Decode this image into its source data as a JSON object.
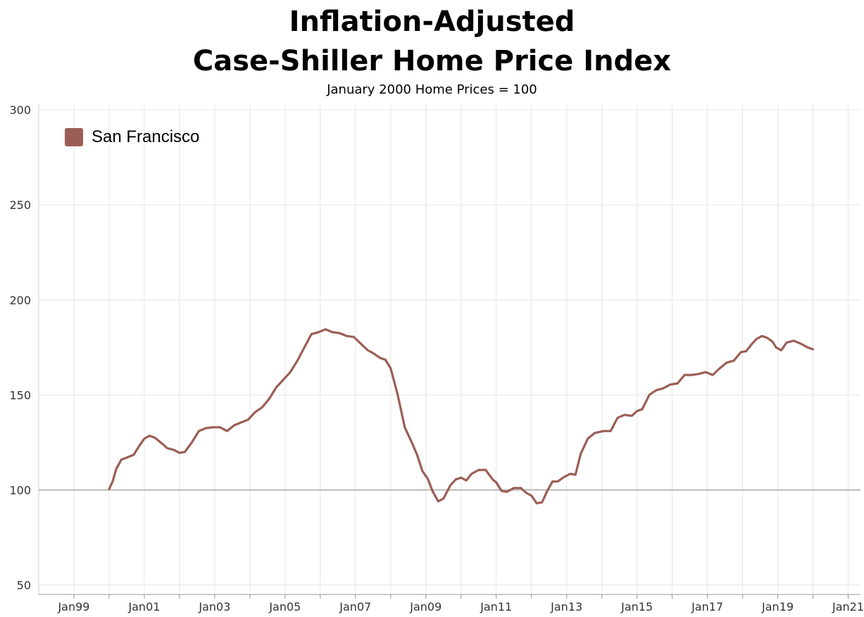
{
  "chart_data": {
    "type": "line",
    "title_line1": "Inflation-Adjusted",
    "title_line2": "Case-Shiller Home Price Index",
    "subtitle": "January 2000 Home Prices = 100",
    "xlabel": "",
    "ylabel": "",
    "ylim": [
      45,
      303
    ],
    "xlim": [
      1998.0,
      2021.35
    ],
    "yticks": [
      50,
      100,
      150,
      200,
      250,
      300
    ],
    "xticks": [
      {
        "label": "Jan99",
        "year": 1999
      },
      {
        "label": "Jan01",
        "year": 2001
      },
      {
        "label": "Jan03",
        "year": 2003
      },
      {
        "label": "Jan05",
        "year": 2005
      },
      {
        "label": "Jan07",
        "year": 2007
      },
      {
        "label": "Jan09",
        "year": 2009
      },
      {
        "label": "Jan11",
        "year": 2011
      },
      {
        "label": "Jan13",
        "year": 2013
      },
      {
        "label": "Jan15",
        "year": 2015
      },
      {
        "label": "Jan17",
        "year": 2017
      },
      {
        "label": "Jan19",
        "year": 2019
      },
      {
        "label": "Jan21",
        "year": 2021
      }
    ],
    "reference_line": 100,
    "grid": true,
    "legend_position": "top-left",
    "series": [
      {
        "name": "San Francisco",
        "color": "#9b5e56",
        "x": [
          2000.0,
          2000.1,
          2000.2,
          2000.35,
          2000.5,
          2000.7,
          2000.85,
          2001.0,
          2001.15,
          2001.3,
          2001.5,
          2001.65,
          2001.85,
          2002.0,
          2002.15,
          2002.35,
          2002.55,
          2002.75,
          2002.95,
          2003.15,
          2003.35,
          2003.55,
          2003.75,
          2003.95,
          2004.15,
          2004.35,
          2004.55,
          2004.75,
          2004.95,
          2005.15,
          2005.35,
          2005.55,
          2005.75,
          2005.95,
          2006.15,
          2006.35,
          2006.55,
          2006.75,
          2006.95,
          2007.15,
          2007.35,
          2007.5,
          2007.7,
          2007.85,
          2008.0,
          2008.2,
          2008.4,
          2008.6,
          2008.75,
          2008.9,
          2009.05,
          2009.2,
          2009.35,
          2009.5,
          2009.7,
          2009.85,
          2010.0,
          2010.15,
          2010.3,
          2010.5,
          2010.7,
          2010.9,
          2011.0,
          2011.15,
          2011.3,
          2011.5,
          2011.7,
          2011.85,
          2012.0,
          2012.15,
          2012.3,
          2012.45,
          2012.6,
          2012.75,
          2012.9,
          2013.1,
          2013.25,
          2013.4,
          2013.6,
          2013.8,
          2014.05,
          2014.25,
          2014.45,
          2014.65,
          2014.85,
          2015.0,
          2015.15,
          2015.35,
          2015.55,
          2015.75,
          2015.95,
          2016.15,
          2016.35,
          2016.55,
          2016.75,
          2016.95,
          2017.15,
          2017.35,
          2017.55,
          2017.75,
          2017.95,
          2018.1,
          2018.25,
          2018.4,
          2018.55,
          2018.7,
          2018.85,
          2018.95,
          2019.1,
          2019.25,
          2019.45,
          2019.65,
          2019.85,
          2020.0
        ],
        "values": [
          100.5,
          104.5,
          111.0,
          116.0,
          117.0,
          118.5,
          123.0,
          127.0,
          128.5,
          127.5,
          124.5,
          122.0,
          121.0,
          119.5,
          120.0,
          125.0,
          131.0,
          132.5,
          133.0,
          133.0,
          131.0,
          134.0,
          135.5,
          137.0,
          141.0,
          143.5,
          148.0,
          154.0,
          158.0,
          162.0,
          168.0,
          175.0,
          182.0,
          183.0,
          184.5,
          183.0,
          182.5,
          181.0,
          180.5,
          177.0,
          173.5,
          172.0,
          169.5,
          168.5,
          164.0,
          150.0,
          133.0,
          125.0,
          118.5,
          110.0,
          106.0,
          99.0,
          94.0,
          95.5,
          102.5,
          105.5,
          106.5,
          105.0,
          108.5,
          110.5,
          110.5,
          105.5,
          104.0,
          99.5,
          99.0,
          101.0,
          101.0,
          98.5,
          97.0,
          93.0,
          93.5,
          99.5,
          104.5,
          104.5,
          106.5,
          108.5,
          108.0,
          119.0,
          127.0,
          130.0,
          131.0,
          131.0,
          138.0,
          139.5,
          139.0,
          141.5,
          142.5,
          150.0,
          152.5,
          153.5,
          155.5,
          156.0,
          160.5,
          160.5,
          161.0,
          162.0,
          160.5,
          164.0,
          167.0,
          168.0,
          172.5,
          173.0,
          176.5,
          179.5,
          181.0,
          180.0,
          178.0,
          175.0,
          173.5,
          177.5,
          178.5,
          177.0,
          175.0,
          174.0
        ]
      }
    ]
  }
}
